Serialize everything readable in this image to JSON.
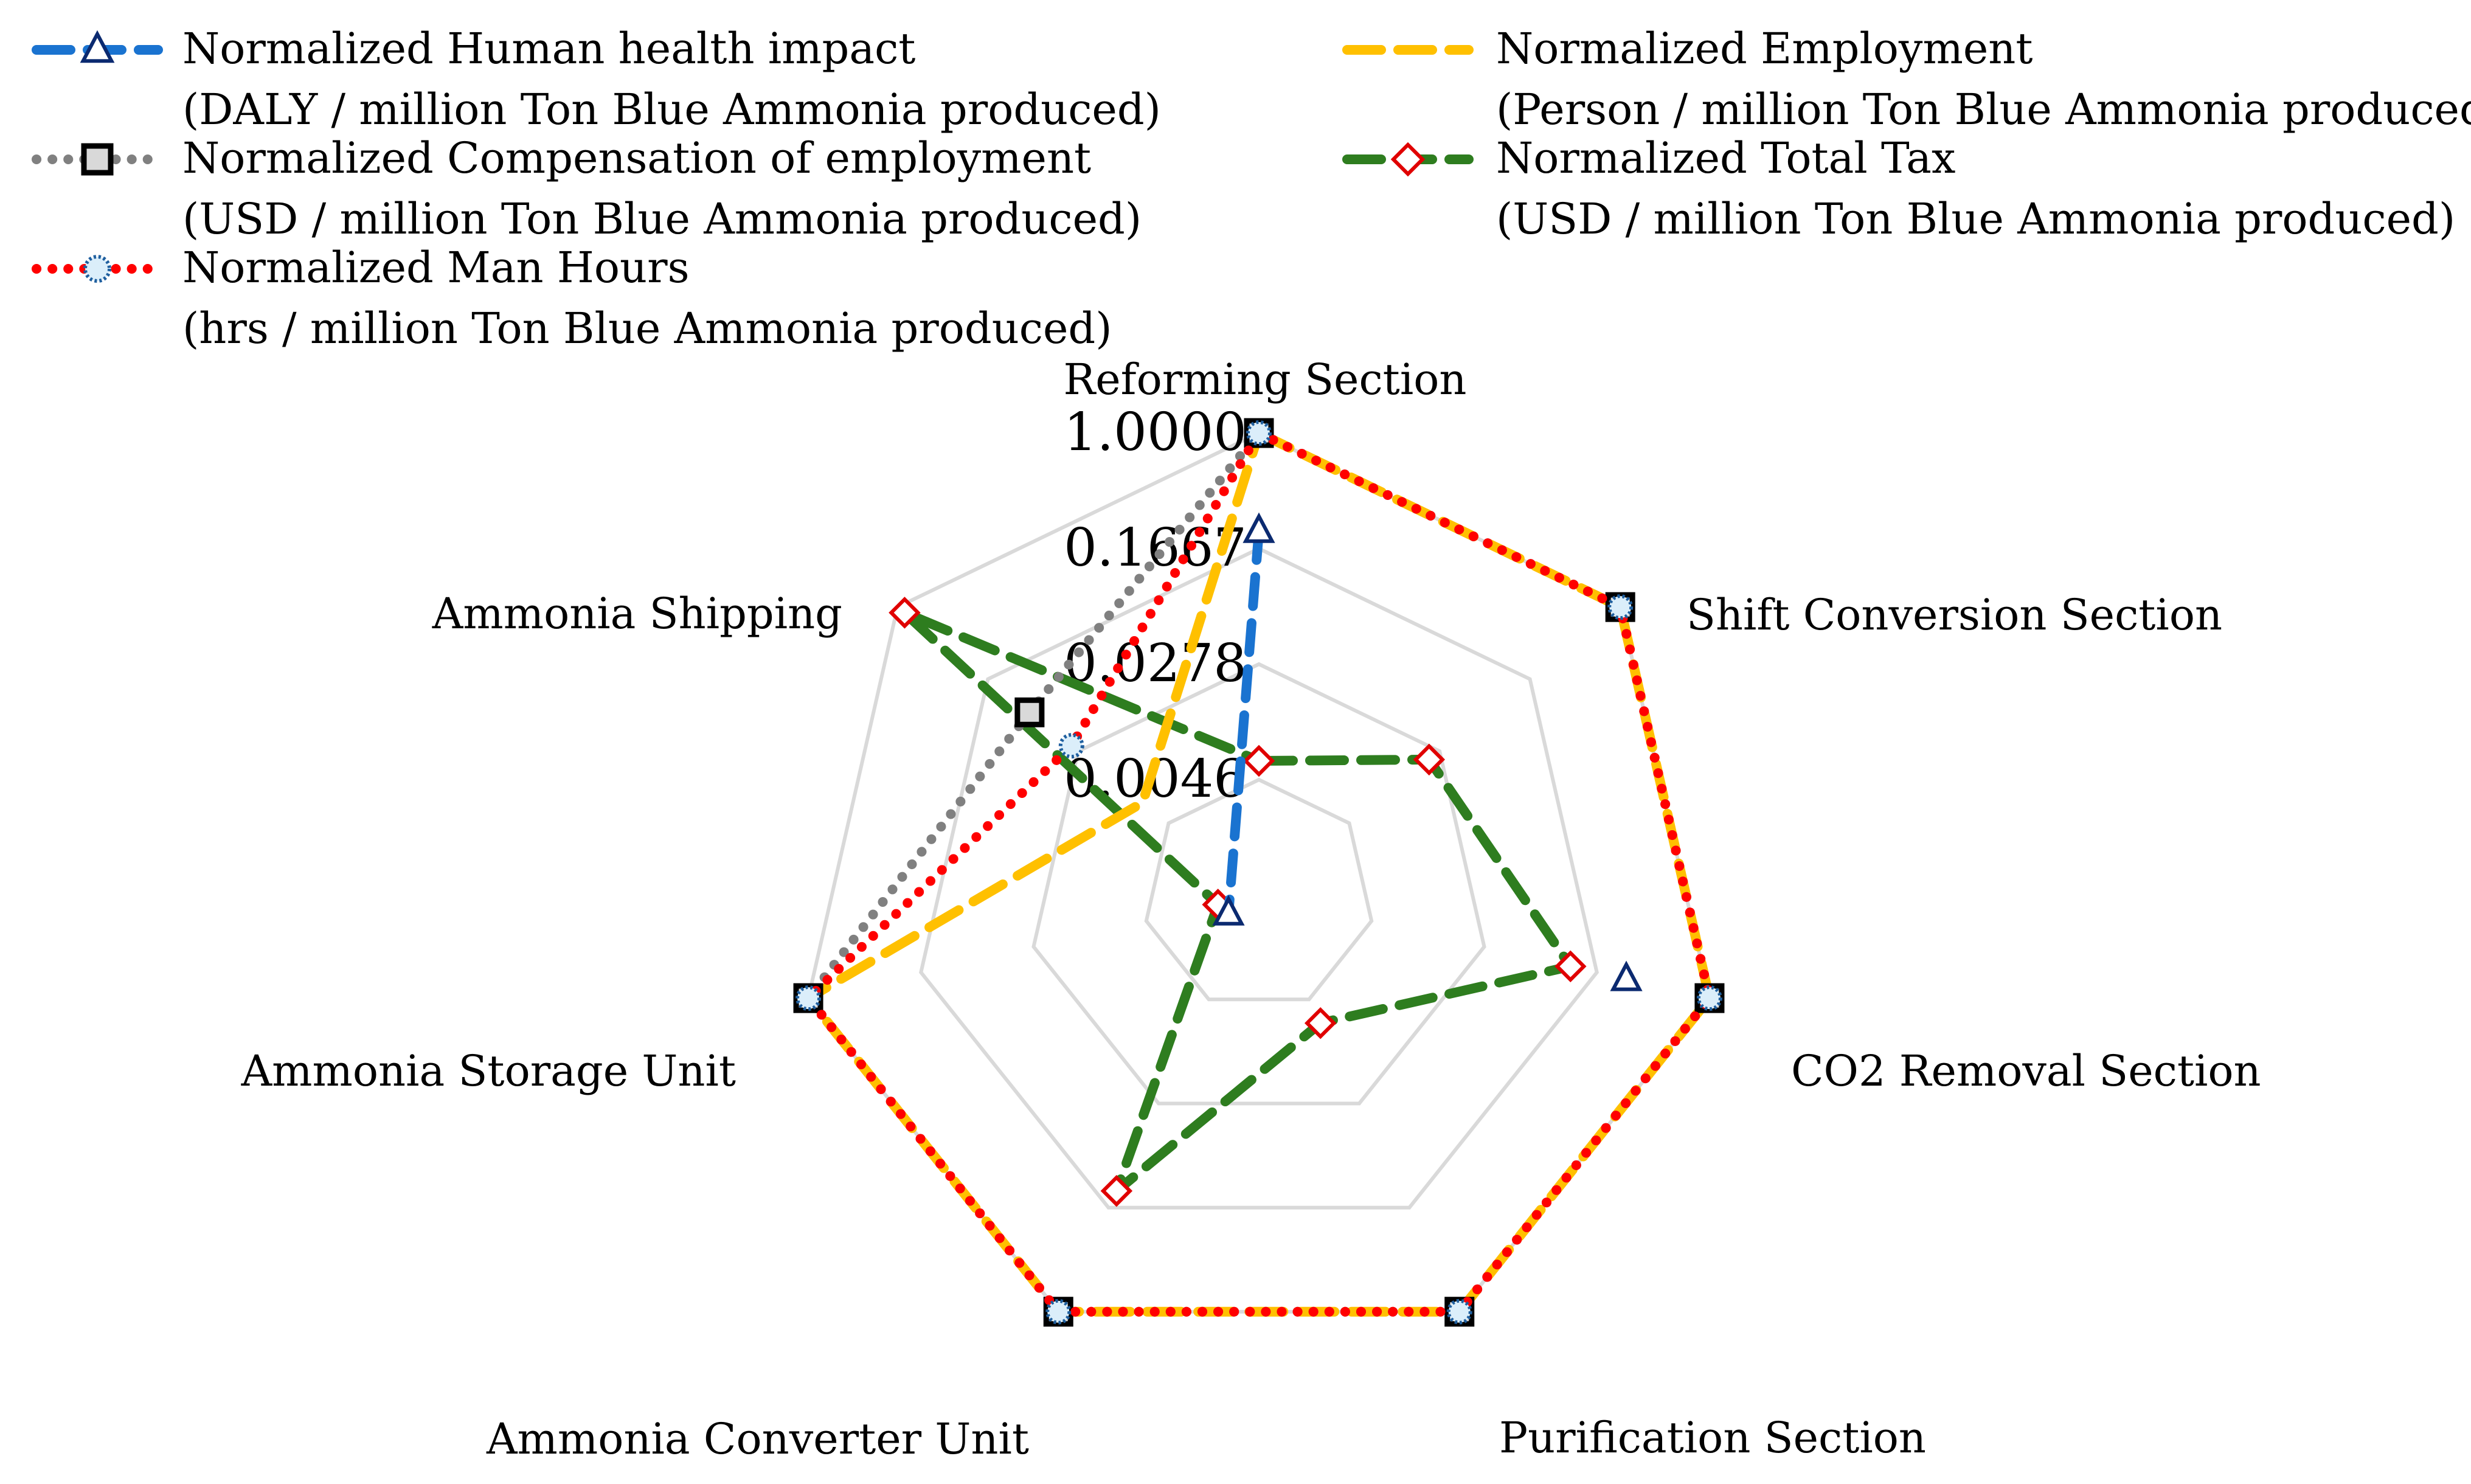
{
  "chart_data": {
    "type": "radar",
    "scale": "log",
    "axis_range": [
      0.0046,
      1.0
    ],
    "grid": true,
    "legend_position": "top",
    "axes": [
      "Reforming Section",
      "Shift Conversion Section",
      "CO2 Removal Section",
      "Purification Section",
      "Ammonia Converter Unit",
      "Ammonia Storage Unit",
      "Ammonia Shipping"
    ],
    "tick_labels": [
      "1.0000",
      "0.1667",
      "0.0278",
      "0.0046"
    ],
    "series": [
      {
        "name": "Normalized Human health impact",
        "unit": "(DALY / million Ton Blue Ammonia produced)",
        "color": "#1a73d0",
        "marker_color": "#0b2a70",
        "marker": "triangle",
        "dash": "dashed",
        "values": [
          0.32,
          null,
          0.37,
          null,
          null,
          null,
          null
        ],
        "center_value": 0.005
      },
      {
        "name": "Normalized Compensation of employment",
        "unit": "(USD / million Ton Blue Ammonia produced)",
        "color": "#808080",
        "marker": "square",
        "dash": "dotted",
        "values": [
          1.0,
          1.0,
          1.0,
          1.0,
          1.0,
          1.0,
          0.14
        ]
      },
      {
        "name": "Normalized Man Hours",
        "unit": "(hrs / million Ton Blue Ammonia produced)",
        "color": "#ff0000",
        "marker_color": "#1f5f9f",
        "marker": "circle",
        "dash": "dotted",
        "values": [
          1.0,
          1.0,
          1.0,
          1.0,
          1.0,
          1.0,
          0.075
        ]
      },
      {
        "name": "Normalized Employment",
        "unit": "(Person / million Ton Blue Ammonia produced)",
        "color": "#ffc000",
        "marker": "none",
        "dash": "dashed",
        "values": [
          1.0,
          1.0,
          1.0,
          1.0,
          1.0,
          1.0,
          0.026
        ]
      },
      {
        "name": "Normalized Total Tax",
        "unit": "(USD / million Ton Blue Ammonia produced)",
        "color": "#2e7d1f",
        "marker_color": "#e00000",
        "marker": "diamond",
        "dash": "dashed",
        "values": [
          0.022,
          0.058,
          0.19,
          0.024,
          0.21,
          0.0075,
          0.9
        ]
      }
    ]
  }
}
